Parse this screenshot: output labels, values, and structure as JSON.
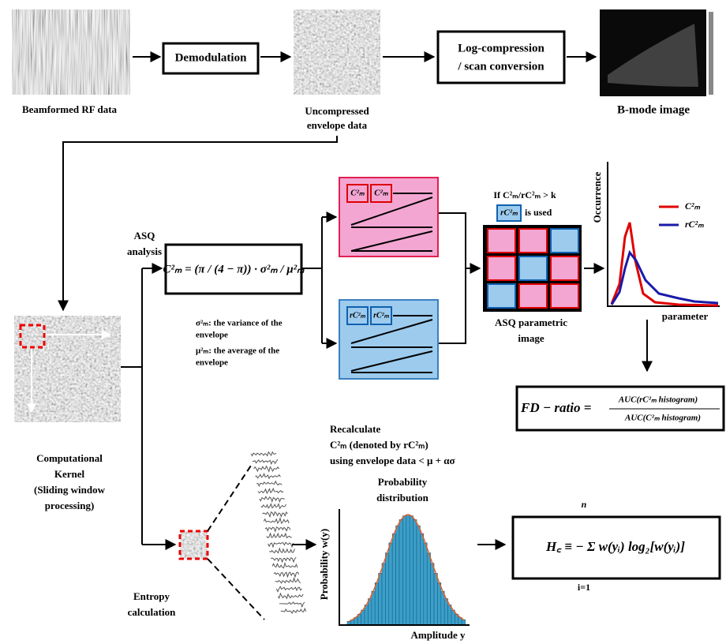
{
  "pipeline": {
    "rf_label": "Beamformed RF data",
    "demodulation": "Demodulation",
    "envelope_label": [
      "Uncompressed",
      "envelope data"
    ],
    "log_compression": [
      "Log-compression",
      "/ scan conversion"
    ],
    "bmode_label": "B-mode image"
  },
  "kernel": {
    "label": [
      "Computational",
      "Kernel",
      "(Sliding window",
      "processing)"
    ]
  },
  "asq": {
    "label": [
      "ASQ",
      "analysis"
    ],
    "formula": "C²ₘ = (π / (4 − π)) · σ²ₘ / μ²ₘ",
    "definitions": [
      "σ²ₘ: the variance of the",
      "envelope",
      "μ²ₘ: the average of the",
      "envelope"
    ],
    "pink_cells": [
      "C²ₘ",
      "C²ₘ"
    ],
    "blue_cells": [
      "rC²ₘ",
      "rC²ₘ"
    ],
    "condition": "If C²ₘ/rC²ₘ > k",
    "used_cell": "rC²ₘ",
    "used_text": "is used",
    "param_image_label": [
      "ASQ parametric",
      "image"
    ],
    "recalculate": [
      "Recalculate",
      "C²ₘ (denoted by rC²ₘ)",
      "using envelope data  <  μ + ασ"
    ],
    "plot": {
      "y_label": "Occurrence",
      "x_label": "parameter",
      "legend": [
        "C²ₘ",
        "rC²ₘ"
      ]
    },
    "fd_ratio": {
      "lhs": "FD − ratio =",
      "numerator": "AUC(rC²ₘ histogram)",
      "denominator": "AUC(C²ₘ histogram)"
    }
  },
  "entropy": {
    "label": [
      "Entropy",
      "calculation"
    ],
    "hist_title": [
      "Probability",
      "distribution"
    ],
    "y_label": "Probability w(y)",
    "x_label": "Amplitude y",
    "formula": "H꜀ ≡ − Σ w(yᵢ) log₂[w(yᵢ)]",
    "sum_top": "n",
    "sum_bottom": "i=1"
  }
}
